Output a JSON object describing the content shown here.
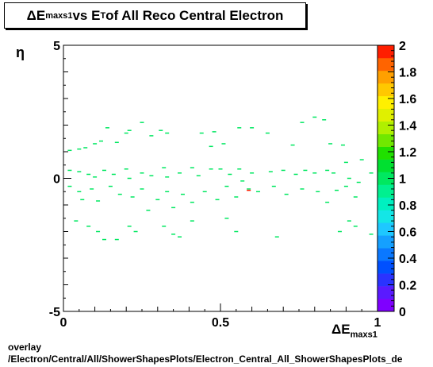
{
  "title": {
    "delta": "ΔE",
    "sub": "maxs1",
    "mid": " vs E",
    "sub2": "T",
    "rest": " of All Reco Central Electron"
  },
  "xlabel": {
    "delta": "ΔE",
    "sub": "maxs1"
  },
  "ylabel": "η",
  "footer": {
    "line1": "overlay",
    "line2": "/Electron/Central/All/ShowerShapesPlots/Electron_Central_All_ShowerShapesPlots_de"
  },
  "chart_data": {
    "type": "heatmap",
    "xlim": [
      0,
      1
    ],
    "ylim": [
      -5,
      5
    ],
    "zlim": [
      0,
      2
    ],
    "x_ticks": [
      "0",
      "0.5",
      "1"
    ],
    "y_ticks": [
      "-5",
      "0",
      "5"
    ],
    "z_ticks": [
      "0",
      "0.2",
      "0.4",
      "0.6",
      "0.8",
      "1",
      "1.2",
      "1.4",
      "1.6",
      "1.8",
      "2"
    ],
    "palette": [
      "#7f00ff",
      "#5a1aff",
      "#2a33ff",
      "#0050ff",
      "#0a78ff",
      "#15a0ff",
      "#1ec8ff",
      "#14e6e6",
      "#00f0c0",
      "#00f090",
      "#00e860",
      "#00e030",
      "#20e000",
      "#70e800",
      "#b0f000",
      "#e0f000",
      "#fff000",
      "#ffc800",
      "#ffa000",
      "#ff6400",
      "#ff1e00"
    ],
    "points": [
      {
        "x": 0.02,
        "y": 1.05,
        "z": 1.0
      },
      {
        "x": 0.05,
        "y": 1.1,
        "z": 1.0
      },
      {
        "x": 0.07,
        "y": 1.15,
        "z": 1.0
      },
      {
        "x": 0.1,
        "y": 1.3,
        "z": 1.0
      },
      {
        "x": 0.12,
        "y": 1.4,
        "z": 1.0
      },
      {
        "x": 0.14,
        "y": 1.9,
        "z": 1.0
      },
      {
        "x": 0.17,
        "y": 1.35,
        "z": 1.0
      },
      {
        "x": 0.2,
        "y": 1.7,
        "z": 1.0
      },
      {
        "x": 0.21,
        "y": 1.8,
        "z": 1.0
      },
      {
        "x": 0.25,
        "y": 2.1,
        "z": 1.0
      },
      {
        "x": 0.28,
        "y": 1.6,
        "z": 1.0
      },
      {
        "x": 0.31,
        "y": 1.8,
        "z": 1.0
      },
      {
        "x": 0.33,
        "y": 1.7,
        "z": 1.0
      },
      {
        "x": 0.44,
        "y": 1.7,
        "z": 1.0
      },
      {
        "x": 0.47,
        "y": 1.2,
        "z": 1.0
      },
      {
        "x": 0.48,
        "y": 1.75,
        "z": 1.0
      },
      {
        "x": 0.51,
        "y": 1.3,
        "z": 1.0
      },
      {
        "x": 0.56,
        "y": 1.9,
        "z": 1.0
      },
      {
        "x": 0.6,
        "y": 1.9,
        "z": 1.0
      },
      {
        "x": 0.65,
        "y": 1.7,
        "z": 1.0
      },
      {
        "x": 0.73,
        "y": 1.25,
        "z": 1.0
      },
      {
        "x": 0.76,
        "y": 2.1,
        "z": 1.0
      },
      {
        "x": 0.8,
        "y": 2.3,
        "z": 1.0
      },
      {
        "x": 0.83,
        "y": 2.2,
        "z": 1.0
      },
      {
        "x": 0.85,
        "y": 1.3,
        "z": 1.0
      },
      {
        "x": 0.89,
        "y": 1.25,
        "z": 1.0
      },
      {
        "x": 0.9,
        "y": 0.6,
        "z": 1.0
      },
      {
        "x": 0.95,
        "y": 0.7,
        "z": 1.0
      },
      {
        "x": 0.02,
        "y": 0.3,
        "z": 1.0
      },
      {
        "x": 0.05,
        "y": 0.25,
        "z": 1.0
      },
      {
        "x": 0.08,
        "y": 0.15,
        "z": 1.0
      },
      {
        "x": 0.1,
        "y": 0.05,
        "z": 1.0
      },
      {
        "x": 0.13,
        "y": 0.3,
        "z": 1.0
      },
      {
        "x": 0.16,
        "y": 0.15,
        "z": 1.0
      },
      {
        "x": 0.2,
        "y": 0.35,
        "z": 1.0
      },
      {
        "x": 0.21,
        "y": 0.0,
        "z": 1.0
      },
      {
        "x": 0.25,
        "y": 0.2,
        "z": 1.0
      },
      {
        "x": 0.28,
        "y": 0.1,
        "z": 1.0
      },
      {
        "x": 0.32,
        "y": 0.4,
        "z": 1.0
      },
      {
        "x": 0.33,
        "y": 0.05,
        "z": 1.0
      },
      {
        "x": 0.37,
        "y": 0.2,
        "z": 1.0
      },
      {
        "x": 0.41,
        "y": 0.4,
        "z": 1.0
      },
      {
        "x": 0.43,
        "y": 0.1,
        "z": 1.0
      },
      {
        "x": 0.47,
        "y": 0.35,
        "z": 1.0
      },
      {
        "x": 0.5,
        "y": 0.35,
        "z": 1.0
      },
      {
        "x": 0.53,
        "y": 0.15,
        "z": 1.0
      },
      {
        "x": 0.56,
        "y": 0.35,
        "z": 1.0
      },
      {
        "x": 0.57,
        "y": -0.1,
        "z": 1.0
      },
      {
        "x": 0.6,
        "y": 0.2,
        "z": 1.0
      },
      {
        "x": 0.66,
        "y": 0.25,
        "z": 1.0
      },
      {
        "x": 0.7,
        "y": 0.3,
        "z": 1.0
      },
      {
        "x": 0.74,
        "y": 0.15,
        "z": 1.0
      },
      {
        "x": 0.77,
        "y": 0.3,
        "z": 1.0
      },
      {
        "x": 0.8,
        "y": 0.2,
        "z": 1.0
      },
      {
        "x": 0.84,
        "y": 0.3,
        "z": 1.0
      },
      {
        "x": 0.86,
        "y": 0.2,
        "z": 1.0
      },
      {
        "x": 0.91,
        "y": 0.0,
        "z": 1.0
      },
      {
        "x": 0.94,
        "y": -0.15,
        "z": 1.0
      },
      {
        "x": 0.98,
        "y": 0.2,
        "z": 1.0
      },
      {
        "x": 0.02,
        "y": -0.3,
        "z": 1.0
      },
      {
        "x": 0.05,
        "y": -0.5,
        "z": 1.0
      },
      {
        "x": 0.06,
        "y": -0.8,
        "z": 1.0
      },
      {
        "x": 0.09,
        "y": -0.4,
        "z": 1.0
      },
      {
        "x": 0.11,
        "y": -0.85,
        "z": 1.0
      },
      {
        "x": 0.15,
        "y": -0.3,
        "z": 1.0
      },
      {
        "x": 0.18,
        "y": -0.6,
        "z": 1.0
      },
      {
        "x": 0.22,
        "y": -0.7,
        "z": 1.0
      },
      {
        "x": 0.25,
        "y": -0.4,
        "z": 1.0
      },
      {
        "x": 0.27,
        "y": -1.2,
        "z": 1.0
      },
      {
        "x": 0.3,
        "y": -0.8,
        "z": 1.0
      },
      {
        "x": 0.33,
        "y": -0.5,
        "z": 1.0
      },
      {
        "x": 0.35,
        "y": -1.1,
        "z": 1.0
      },
      {
        "x": 0.38,
        "y": -0.6,
        "z": 1.0
      },
      {
        "x": 0.41,
        "y": -0.9,
        "z": 1.0
      },
      {
        "x": 0.45,
        "y": -0.5,
        "z": 1.0
      },
      {
        "x": 0.49,
        "y": -0.8,
        "z": 1.0
      },
      {
        "x": 0.52,
        "y": -0.3,
        "z": 1.0
      },
      {
        "x": 0.55,
        "y": -0.7,
        "z": 1.0
      },
      {
        "x": 0.59,
        "y": -0.4,
        "z": 1.0
      },
      {
        "x": 0.62,
        "y": -0.5,
        "z": 1.0
      },
      {
        "x": 0.67,
        "y": -0.3,
        "z": 1.0
      },
      {
        "x": 0.71,
        "y": -0.6,
        "z": 1.0
      },
      {
        "x": 0.76,
        "y": -0.4,
        "z": 1.0
      },
      {
        "x": 0.81,
        "y": -0.5,
        "z": 1.0
      },
      {
        "x": 0.84,
        "y": -0.9,
        "z": 1.0
      },
      {
        "x": 0.87,
        "y": -0.45,
        "z": 1.0
      },
      {
        "x": 0.9,
        "y": -0.3,
        "z": 1.0
      },
      {
        "x": 0.93,
        "y": -0.7,
        "z": 1.0
      },
      {
        "x": 0.59,
        "y": -0.45,
        "z": 2.0
      },
      {
        "x": 0.04,
        "y": -1.6,
        "z": 1.0
      },
      {
        "x": 0.08,
        "y": -1.8,
        "z": 1.0
      },
      {
        "x": 0.11,
        "y": -2.0,
        "z": 1.0
      },
      {
        "x": 0.13,
        "y": -2.3,
        "z": 1.0
      },
      {
        "x": 0.17,
        "y": -2.3,
        "z": 1.0
      },
      {
        "x": 0.21,
        "y": -1.8,
        "z": 1.0
      },
      {
        "x": 0.23,
        "y": -2.0,
        "z": 1.0
      },
      {
        "x": 0.32,
        "y": -1.8,
        "z": 1.0
      },
      {
        "x": 0.35,
        "y": -2.1,
        "z": 1.0
      },
      {
        "x": 0.37,
        "y": -2.2,
        "z": 1.0
      },
      {
        "x": 0.41,
        "y": -1.6,
        "z": 1.0
      },
      {
        "x": 0.52,
        "y": -1.5,
        "z": 1.0
      },
      {
        "x": 0.55,
        "y": -2.0,
        "z": 1.0
      },
      {
        "x": 0.68,
        "y": -2.2,
        "z": 1.0
      },
      {
        "x": 0.88,
        "y": -2.0,
        "z": 1.0
      },
      {
        "x": 0.91,
        "y": -1.6,
        "z": 1.0
      },
      {
        "x": 0.98,
        "y": -2.1,
        "z": 1.0
      },
      {
        "x": 0.93,
        "y": -1.8,
        "z": 1.0
      }
    ]
  }
}
